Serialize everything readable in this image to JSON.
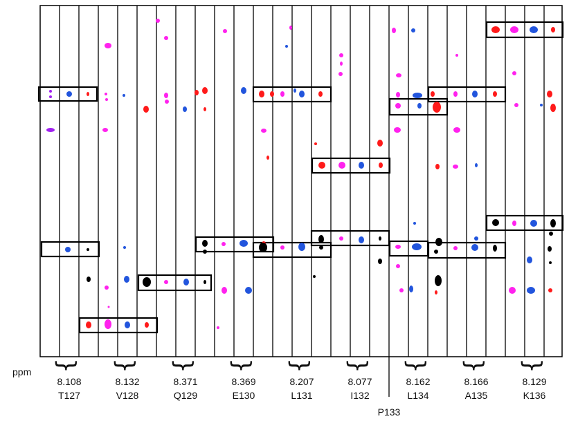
{
  "axis_label": "ppm",
  "colors": {
    "frame": "#000000",
    "red": "#ff1a1a",
    "magenta": "#ff22ee",
    "blue": "#2255dd",
    "black": "#000000",
    "purple": "#a020f0"
  },
  "residues": [
    {
      "ppm": "8.108",
      "name": "T127"
    },
    {
      "ppm": "8.132",
      "name": "V128"
    },
    {
      "ppm": "8.371",
      "name": "Q129"
    },
    {
      "ppm": "8.369",
      "name": "E130"
    },
    {
      "ppm": "8.207",
      "name": "L131"
    },
    {
      "ppm": "8.077",
      "name": "I132"
    },
    {
      "ppm": "8.162",
      "name": "L134"
    },
    {
      "ppm": "8.166",
      "name": "A135"
    },
    {
      "ppm": "8.129",
      "name": "K136"
    }
  ],
  "proline_label": "P133"
}
